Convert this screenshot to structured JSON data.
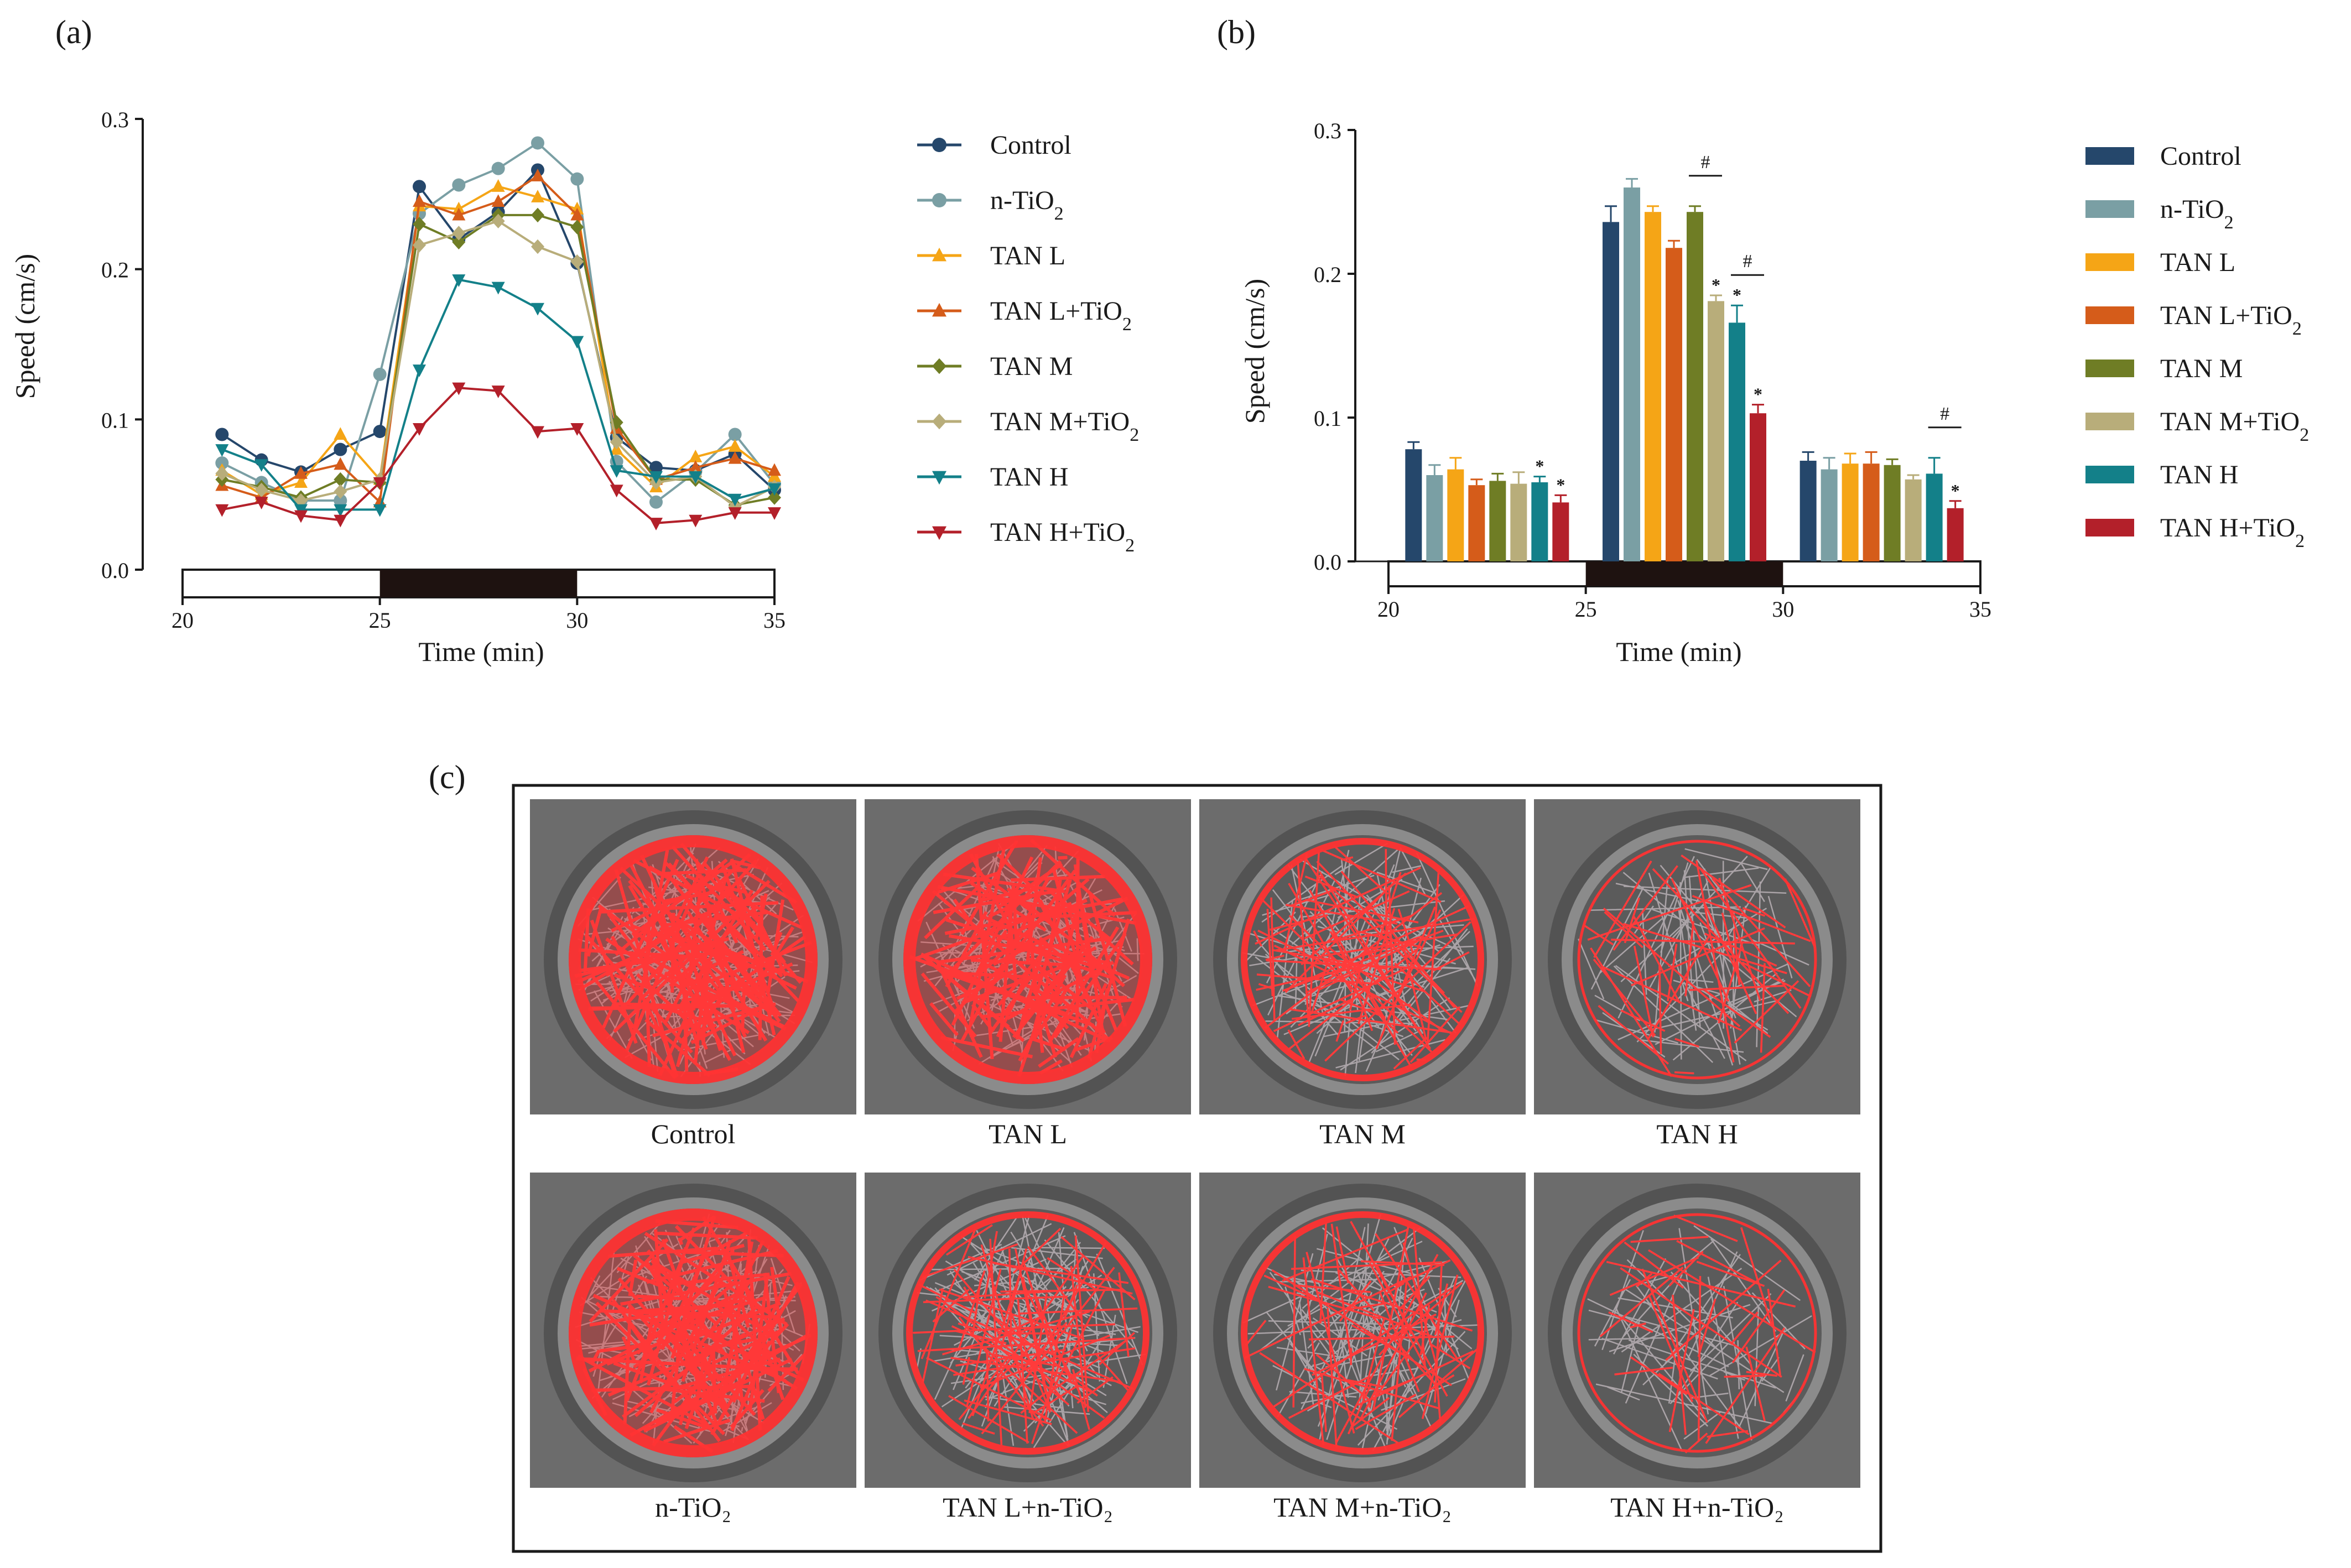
{
  "panels": {
    "a": "(a)",
    "b": "(b)",
    "c": "(c)"
  },
  "legend_items": [
    {
      "label": "Control",
      "sub": "",
      "color": "#25476b",
      "marker": "circle"
    },
    {
      "label": "n-TiO",
      "sub": "2",
      "color": "#7a9fa4",
      "marker": "circle"
    },
    {
      "label": "TAN L",
      "sub": "",
      "color": "#f5a516",
      "marker": "triangle-up"
    },
    {
      "label": "TAN L+TiO",
      "sub": "2",
      "color": "#d55c1a",
      "marker": "triangle-up"
    },
    {
      "label": "TAN M",
      "sub": "",
      "color": "#6f7d25",
      "marker": "diamond"
    },
    {
      "label": "TAN M+TiO",
      "sub": "2",
      "color": "#b8ad7a",
      "marker": "diamond"
    },
    {
      "label": "TAN H",
      "sub": "",
      "color": "#138089",
      "marker": "triangle-down"
    },
    {
      "label": "TAN H+TiO",
      "sub": "2",
      "color": "#b3202a",
      "marker": "triangle-down"
    }
  ],
  "chart_data": [
    {
      "panel": "a",
      "type": "line",
      "xlabel": "Time (min)",
      "ylabel": "Speed (cm/s)",
      "xlim": [
        20,
        35
      ],
      "ylim": [
        0,
        0.3
      ],
      "xticks": [
        "20",
        "25",
        "30",
        "35"
      ],
      "yticks": [
        "0.0",
        "0.1",
        "0.2",
        "0.3"
      ],
      "x": [
        21,
        22,
        23,
        24,
        25,
        26,
        27,
        28,
        29,
        30,
        31,
        32,
        33,
        34,
        35
      ],
      "dark_period": [
        25,
        30
      ],
      "series": [
        {
          "name": "Control",
          "values": [
            0.09,
            0.073,
            0.065,
            0.08,
            0.092,
            0.255,
            0.22,
            0.238,
            0.266,
            0.204,
            0.088,
            0.068,
            0.066,
            0.077,
            0.053
          ]
        },
        {
          "name": "n-TiO2",
          "values": [
            0.071,
            0.058,
            0.046,
            0.046,
            0.13,
            0.237,
            0.256,
            0.267,
            0.284,
            0.26,
            0.072,
            0.045,
            0.065,
            0.09,
            0.057
          ]
        },
        {
          "name": "TAN L",
          "values": [
            0.066,
            0.05,
            0.058,
            0.09,
            0.06,
            0.242,
            0.24,
            0.255,
            0.248,
            0.24,
            0.08,
            0.055,
            0.075,
            0.082,
            0.062
          ]
        },
        {
          "name": "TAN L+TiO2",
          "values": [
            0.056,
            0.048,
            0.064,
            0.07,
            0.045,
            0.245,
            0.236,
            0.245,
            0.262,
            0.236,
            0.094,
            0.06,
            0.068,
            0.074,
            0.066
          ]
        },
        {
          "name": "TAN M",
          "values": [
            0.06,
            0.055,
            0.048,
            0.06,
            0.058,
            0.23,
            0.218,
            0.236,
            0.236,
            0.228,
            0.098,
            0.06,
            0.06,
            0.043,
            0.048
          ]
        },
        {
          "name": "TAN M+TiO2",
          "values": [
            0.064,
            0.053,
            0.046,
            0.052,
            0.06,
            0.216,
            0.224,
            0.232,
            0.215,
            0.205,
            0.085,
            0.058,
            0.062,
            0.042,
            0.055
          ]
        },
        {
          "name": "TAN H",
          "values": [
            0.08,
            0.07,
            0.04,
            0.04,
            0.04,
            0.133,
            0.193,
            0.188,
            0.174,
            0.152,
            0.066,
            0.062,
            0.062,
            0.047,
            0.054
          ]
        },
        {
          "name": "TAN H+TiO2",
          "values": [
            0.04,
            0.045,
            0.036,
            0.033,
            0.058,
            0.094,
            0.121,
            0.119,
            0.092,
            0.094,
            0.053,
            0.031,
            0.033,
            0.038,
            0.038
          ]
        }
      ]
    },
    {
      "panel": "b",
      "type": "bar",
      "xlabel": "Time (min)",
      "ylabel": "Speed (cm/s)",
      "xlim": [
        20,
        35
      ],
      "ylim": [
        0,
        0.3
      ],
      "xticks": [
        "20",
        "25",
        "30",
        "35"
      ],
      "yticks": [
        "0.0",
        "0.1",
        "0.2",
        "0.3"
      ],
      "dark_period": [
        25,
        30
      ],
      "categories": [
        "20-25",
        "25-30",
        "30-35"
      ],
      "series": [
        {
          "name": "Control",
          "values": [
            0.078,
            0.236,
            0.07
          ],
          "errors": [
            0.005,
            0.011,
            0.006
          ],
          "marks": [
            "",
            "",
            ""
          ]
        },
        {
          "name": "n-TiO2",
          "values": [
            0.06,
            0.26,
            0.064
          ],
          "errors": [
            0.007,
            0.006,
            0.008
          ],
          "marks": [
            "",
            "",
            ""
          ]
        },
        {
          "name": "TAN L",
          "values": [
            0.064,
            0.243,
            0.068
          ],
          "errors": [
            0.008,
            0.004,
            0.007
          ],
          "marks": [
            "",
            "",
            ""
          ]
        },
        {
          "name": "TAN L+TiO2",
          "values": [
            0.053,
            0.218,
            0.068
          ],
          "errors": [
            0.004,
            0.005,
            0.008
          ],
          "marks": [
            "",
            "",
            ""
          ]
        },
        {
          "name": "TAN M",
          "values": [
            0.056,
            0.243,
            0.067
          ],
          "errors": [
            0.005,
            0.004,
            0.004
          ],
          "marks": [
            "",
            "",
            ""
          ]
        },
        {
          "name": "TAN M+TiO2",
          "values": [
            0.054,
            0.181,
            0.057
          ],
          "errors": [
            0.008,
            0.004,
            0.003
          ],
          "marks": [
            "",
            "*",
            ""
          ]
        },
        {
          "name": "TAN H",
          "values": [
            0.055,
            0.166,
            0.061
          ],
          "errors": [
            0.004,
            0.012,
            0.011
          ],
          "marks": [
            "*",
            "*",
            ""
          ]
        },
        {
          "name": "TAN H+TiO2",
          "values": [
            0.041,
            0.103,
            0.037
          ],
          "errors": [
            0.005,
            0.006,
            0.005
          ],
          "marks": [
            "*",
            "*",
            "*"
          ]
        }
      ],
      "hash_brackets": [
        {
          "category": "25-30",
          "between": [
            "TAN M",
            "TAN M+TiO2"
          ],
          "label": "#"
        },
        {
          "category": "25-30",
          "between": [
            "TAN H",
            "TAN H+TiO2"
          ],
          "label": "#"
        },
        {
          "category": "30-35",
          "between": [
            "TAN H",
            "TAN H+TiO2"
          ],
          "label": "#"
        }
      ]
    }
  ],
  "panel_c": {
    "tracks": [
      {
        "label": "Control",
        "density": 0.95,
        "style": "dense"
      },
      {
        "label": "TAN L",
        "density": 0.85,
        "style": "dense"
      },
      {
        "label": "TAN M",
        "density": 0.6,
        "style": "mixed"
      },
      {
        "label": "TAN H",
        "density": 0.3,
        "style": "sparse"
      },
      {
        "label": "n-TiO₂",
        "density": 0.95,
        "style": "dense"
      },
      {
        "label": "TAN L+n-TiO₂",
        "density": 0.65,
        "style": "mixed"
      },
      {
        "label": "TAN M+n-TiO₂",
        "density": 0.5,
        "style": "mixed"
      },
      {
        "label": "TAN H+n-TiO₂",
        "density": 0.22,
        "style": "sparse"
      }
    ]
  }
}
